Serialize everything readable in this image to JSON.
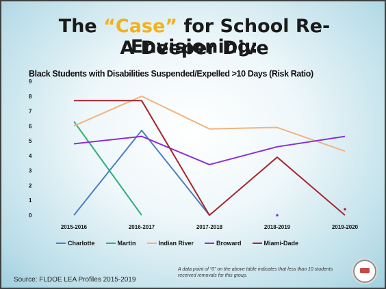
{
  "slide": {
    "title_part1": "The ",
    "title_case": "“Case”",
    "title_part2": " for School Re-Envisioning:",
    "title_line2": "A Deeper Dive",
    "source": "Source: FLDOE LEA Profiles 2015-2019",
    "footnote": "A data point of “0” on the above table indicates that less than 10 students received removals for this group."
  },
  "chart_data": {
    "type": "line",
    "title": "Black Students with Disabilities Suspended/Expelled >10 Days (Risk Ratio)",
    "categories": [
      "2015-2016",
      "2016-2017",
      "2017-2018",
      "2018-2019",
      "2019-2020"
    ],
    "ylim": [
      0,
      9
    ],
    "yticks": [
      "0",
      "1",
      "2",
      "3",
      "4",
      "5",
      "6",
      "7",
      "8",
      "9"
    ],
    "grid": false,
    "legend_position": "bottom",
    "series": [
      {
        "name": "Charlotte",
        "color": "#4a7ec2",
        "values": [
          0,
          5.7,
          0,
          null,
          null
        ]
      },
      {
        "name": "Martin",
        "color": "#2fae78",
        "values": [
          6.3,
          0,
          null,
          null,
          null
        ]
      },
      {
        "name": "Indian River",
        "color": "#f2b47e",
        "values": [
          6.0,
          8.0,
          5.8,
          5.9,
          4.3
        ]
      },
      {
        "name": "Broward",
        "color": "#8a2fd6",
        "values": [
          4.8,
          5.3,
          3.4,
          4.6,
          5.3
        ]
      },
      {
        "name": "Miami-Dade",
        "color": "#a8232e",
        "values": [
          7.7,
          7.7,
          0,
          3.9,
          0
        ]
      }
    ],
    "markers": [
      {
        "series": "Broward",
        "x": "2018-2019",
        "y": 0
      },
      {
        "series": "Miami-Dade",
        "x": "2019-2020",
        "y": 0.4
      }
    ]
  }
}
